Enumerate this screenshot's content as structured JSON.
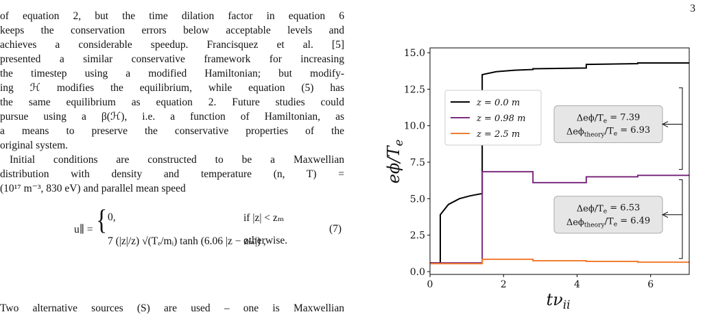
{
  "page_number": "3",
  "body": {
    "lines": [
      "of equation 2, but the time dilation factor in equation 6",
      "keeps the conservation errors below acceptable levels and",
      "achieves a considerable speedup. Francisquez et al. [5]",
      "presented a similar conservative framework for increasing",
      "the timestep using a modified Hamiltonian; but modify-",
      "ing ℋ modifies the equilibrium, while equation (5) has",
      "the same equilibrium as equation 2. Future studies could",
      "pursue using a β(ℋ), i.e. a function of Hamiltonian, as",
      "a means to preserve the conservative properties of the",
      "original system.",
      "Initial conditions are constructed to be a Maxwellian",
      "distribution with density and temperature (n, T) =",
      "(10¹⁷ m⁻³, 830 eV) and parallel mean speed"
    ],
    "equation": {
      "lhs": "u∥ =",
      "case1": "0,",
      "cond1": "if |z| < zₘ",
      "case2": "7 (|z|/z) √(Tₑ/mᵢ) tanh (6.06 |z − zₘ|) ,",
      "cond2": "otherwise.",
      "number": "(7)"
    },
    "last_line": "Two alternative sources (S) are used – one is Maxwellian"
  },
  "chart_data": {
    "type": "line",
    "x_label": [
      "tν",
      "ii"
    ],
    "y_label": [
      "eϕ/T",
      "e"
    ],
    "xlim": [
      0,
      7.05
    ],
    "ylim": [
      -0.19,
      15.33
    ],
    "xticks": [
      0,
      2,
      4,
      6
    ],
    "yticks": [
      {
        "value": 0,
        "label": "0.0"
      },
      2.5,
      {
        "value": 5,
        "label": "5.0"
      },
      7.5,
      {
        "value": 10,
        "label": "10.0"
      },
      12.5,
      {
        "value": 15,
        "label": "15.0"
      }
    ],
    "legend_loc": "upper left",
    "series": [
      {
        "name": "z = 0.0 m",
        "color": "#000000",
        "x": [
          0,
          0.28,
          0.28,
          0.5,
          0.8,
          1.1,
          1.42,
          1.42,
          1.8,
          2.3,
          2.8,
          2.8,
          4.25,
          4.25,
          5.65,
          5.65,
          7.05
        ],
        "values": [
          0.6,
          0.6,
          3.9,
          4.6,
          5.0,
          5.2,
          5.35,
          13.5,
          13.7,
          13.8,
          13.85,
          13.9,
          13.95,
          14.2,
          14.25,
          14.3,
          14.3
        ]
      },
      {
        "name": "z = 0.98 m",
        "color": "#7b2a7e",
        "x": [
          0,
          1.42,
          1.42,
          2.8,
          2.8,
          4.25,
          4.25,
          5.65,
          5.65,
          7.05
        ],
        "values": [
          0.6,
          0.6,
          6.85,
          6.85,
          6.1,
          6.1,
          6.5,
          6.5,
          6.6,
          6.6
        ]
      },
      {
        "name": "z = 2.5 m",
        "color": "#f07c30",
        "x": [
          0,
          1.42,
          1.42,
          2.8,
          2.8,
          4.25,
          4.25,
          5.65,
          5.65,
          7.05
        ],
        "values": [
          0.55,
          0.55,
          0.85,
          0.85,
          0.75,
          0.75,
          0.7,
          0.7,
          0.65,
          0.65
        ]
      }
    ],
    "annotations": [
      {
        "line1": [
          "Δeϕ/T",
          "e",
          " = 7.39"
        ],
        "line2": [
          "Δeϕ",
          "theory",
          "/T",
          "e",
          " = 6.93"
        ]
      },
      {
        "line1": [
          "Δeϕ/T",
          "e",
          " = 6.53"
        ],
        "line2": [
          "Δeϕ",
          "theory",
          "/T",
          "e",
          " = 6.49"
        ]
      }
    ]
  }
}
